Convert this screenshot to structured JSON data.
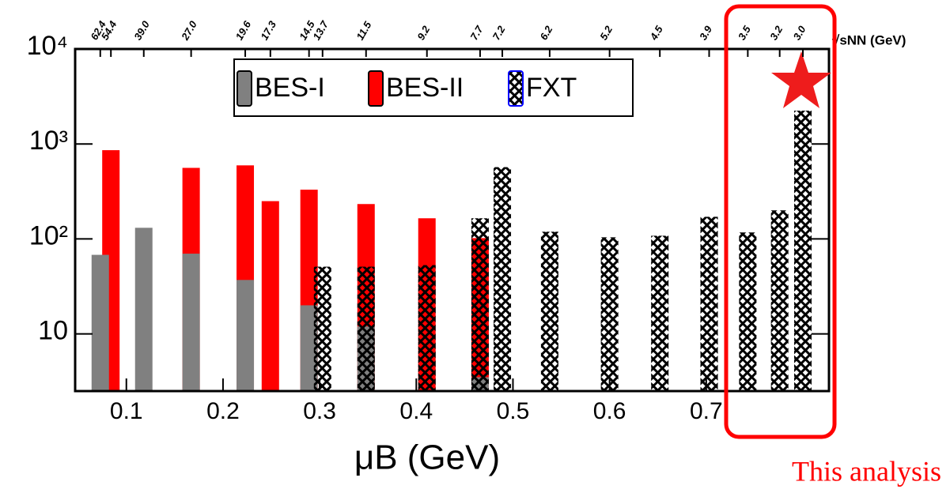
{
  "chart_data": {
    "type": "bar",
    "log_y": true,
    "xlabel": "μB (GeV)",
    "x2label": "√sNN (GeV)",
    "xlim": [
      0.047,
      0.827
    ],
    "ylim": [
      2.5,
      10000
    ],
    "xticks": [
      0.1,
      0.2,
      0.3,
      0.4,
      0.5,
      0.6,
      0.7
    ],
    "yticks": [
      10,
      {
        "value": 100,
        "label": "10²"
      },
      {
        "value": 1000,
        "label": "10³"
      },
      {
        "value": 10000,
        "label": "10⁴"
      }
    ],
    "x2ticks": [
      {
        "value": 0.073,
        "label": "62.4"
      },
      {
        "value": 0.084,
        "label": "54.4"
      },
      {
        "value": 0.118,
        "label": "39.0"
      },
      {
        "value": 0.167,
        "label": "27.0"
      },
      {
        "value": 0.223,
        "label": "19.6"
      },
      {
        "value": 0.249,
        "label": "17.3"
      },
      {
        "value": 0.289,
        "label": "14.5"
      },
      {
        "value": 0.303,
        "label": "13.7"
      },
      {
        "value": 0.348,
        "label": "11.5"
      },
      {
        "value": 0.411,
        "label": "9.2"
      },
      {
        "value": 0.466,
        "label": "7.7"
      },
      {
        "value": 0.489,
        "label": "7.2"
      },
      {
        "value": 0.538,
        "label": "6.2"
      },
      {
        "value": 0.6,
        "label": "5.2"
      },
      {
        "value": 0.652,
        "label": "4.5"
      },
      {
        "value": 0.703,
        "label": "3.9"
      },
      {
        "value": 0.743,
        "label": "3.5"
      },
      {
        "value": 0.776,
        "label": "3.2"
      },
      {
        "value": 0.8,
        "label": "3.0"
      }
    ],
    "series": [
      {
        "name": "BES-I",
        "color": "#808080",
        "x": [
          0.073,
          0.118,
          0.167,
          0.223,
          0.289,
          0.348,
          0.466
        ],
        "values": [
          68,
          131,
          70,
          37,
          20,
          12,
          3.5
        ]
      },
      {
        "name": "BES-II",
        "color": "#ff0000",
        "x": [
          0.084,
          0.167,
          0.223,
          0.249,
          0.289,
          0.348,
          0.411,
          0.466
        ],
        "values": [
          860,
          560,
          595,
          250,
          330,
          233,
          165,
          102
        ]
      },
      {
        "name": "FXT",
        "color": "#000000",
        "hatch": true,
        "x": [
          0.303,
          0.348,
          0.411,
          0.466,
          0.489,
          0.538,
          0.6,
          0.652,
          0.703,
          0.743,
          0.776,
          0.8
        ],
        "values": [
          51,
          51,
          53,
          165,
          570,
          119,
          104,
          108,
          171,
          117,
          200,
          2240
        ]
      }
    ],
    "annotation": "This analysis"
  }
}
